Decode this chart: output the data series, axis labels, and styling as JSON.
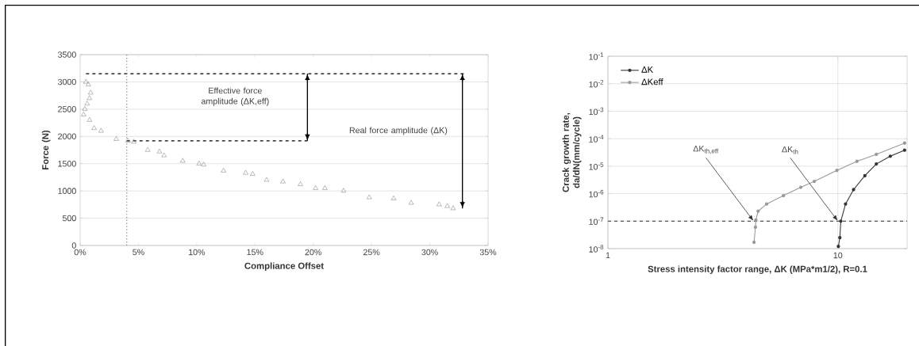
{
  "chart_data": [
    {
      "type": "scatter",
      "xlabel": "Compliance Offset",
      "ylabel": "Force (N)",
      "xlim": [
        0,
        35
      ],
      "xticks": [
        {
          "value": 0,
          "label": "0%"
        },
        {
          "value": 5,
          "label": "5%"
        },
        {
          "value": 10,
          "label": "10%"
        },
        {
          "value": 15,
          "label": "15%"
        },
        {
          "value": 20,
          "label": "20%"
        },
        {
          "value": 25,
          "label": "25%"
        },
        {
          "value": 30,
          "label": "30%"
        },
        {
          "value": 35,
          "label": "35%"
        }
      ],
      "ylim": [
        0,
        3500
      ],
      "yticks": [
        0,
        500,
        1000,
        1500,
        2000,
        2500,
        3000,
        3500
      ],
      "grid": "y",
      "marker": "triangle",
      "series": [
        {
          "color": "#7f7f7f",
          "x": [
            0.5,
            0.7,
            0.9,
            0.8,
            0.6,
            0.4,
            0.3,
            0.8,
            1.2,
            1.8,
            3.1,
            4.1,
            4.6,
            5.8,
            6.8,
            7.2,
            8.8,
            10.2,
            10.6,
            12.3,
            14.2,
            14.8,
            16,
            17.4,
            18.9,
            20.2,
            21,
            22.6,
            24.8,
            26.9,
            28.4,
            30.8,
            31.5,
            32
          ],
          "values": [
            3000,
            2950,
            2800,
            2700,
            2600,
            2500,
            2400,
            2300,
            2150,
            2100,
            1950,
            1920,
            1900,
            1750,
            1720,
            1650,
            1550,
            1500,
            1480,
            1370,
            1330,
            1310,
            1200,
            1170,
            1120,
            1050,
            1050,
            1000,
            880,
            860,
            780,
            750,
            720,
            680
          ]
        },
        {
          "type": "line",
          "line_style": "dashed",
          "marker": "none",
          "color": "#000000",
          "x": [
            0.5,
            33
          ],
          "values": [
            3150,
            3150
          ]
        },
        {
          "type": "line",
          "line_style": "dashed",
          "marker": "none",
          "color": "#000000",
          "x": [
            4,
            19.5
          ],
          "values": [
            1920,
            1920
          ]
        },
        {
          "type": "line",
          "line_style": "solid",
          "marker": "none",
          "color": "#000000",
          "x": [
            19.5,
            19.5
          ],
          "values": [
            3150,
            1920
          ]
        },
        {
          "type": "line",
          "line_style": "solid",
          "marker": "none",
          "color": "#000000",
          "x": [
            32.8,
            32.8
          ],
          "values": [
            3150,
            680
          ]
        }
      ],
      "ref_lines": [
        {
          "axis": "x",
          "value": 4,
          "line_style": "dotted",
          "color": "#7f7f7f"
        }
      ],
      "annotations": [
        "Effective force amplitude (ΔK,eff)",
        "Real force amplitude (ΔK)"
      ]
    },
    {
      "type": "line",
      "xlabel": "Stress intensity factor range, ΔK (MPa*m1/2), R=0.1",
      "ylabel": "Crack growth rate, da/dN(mm/cycle)",
      "log": "xy",
      "xlim": [
        1,
        20
      ],
      "xticks": [
        1,
        10
      ],
      "ylim": [
        1e-08,
        0.1
      ],
      "yticks": [
        {
          "value": 1e-08,
          "label": "10$^{-8}$"
        },
        {
          "value": 1e-07,
          "label": "10$^{-7}$"
        },
        {
          "value": 1e-06,
          "label": "10$^{-6}$"
        },
        {
          "value": 1e-05,
          "label": "10$^{-5}$"
        },
        {
          "value": 0.0001,
          "label": "10$^{-4}$"
        },
        {
          "value": 0.001,
          "label": "10$^{-3}$"
        },
        {
          "value": 0.01,
          "label": "10$^{-2}$"
        },
        {
          "value": 0.1,
          "label": "10$^{-1}$"
        }
      ],
      "grid": true,
      "legend": "top left",
      "marker": "circle",
      "series": [
        {
          "name": "ΔK",
          "color": "#333333",
          "x": [
            10.05,
            10.2,
            10.3,
            10.8,
            11.7,
            13.1,
            14.7,
            16.9,
            19.5
          ],
          "values": [
            1.2e-08,
            2.5e-08,
            1e-07,
            4.2e-07,
            1.4e-06,
            4.5e-06,
            1.2e-05,
            2.3e-05,
            3.8e-05
          ]
        },
        {
          "name": "ΔKeff",
          "color": "#999999",
          "x": [
            4.32,
            4.38,
            4.4,
            4.5,
            4.9,
            5.8,
            6.9,
            7.9,
            9.9,
            12.1,
            14.7,
            19.5
          ],
          "values": [
            1.7e-08,
            6e-08,
            1.1e-07,
            2.3e-07,
            4.2e-07,
            8.5e-07,
            1.7e-06,
            2.8e-06,
            7e-06,
            1.5e-05,
            2.7e-05,
            6.9e-05
          ]
        }
      ],
      "ref_lines": [
        {
          "axis": "y",
          "value": 1e-07,
          "line_style": "dashed",
          "color": "#555555"
        }
      ],
      "annotations": [
        {
          "text": "ΔK$_{th,eff}$",
          "x": 4.3,
          "y": 1e-07
        },
        {
          "text": "ΔK$_{th}$",
          "x": 10,
          "y": 1e-07
        }
      ]
    }
  ]
}
